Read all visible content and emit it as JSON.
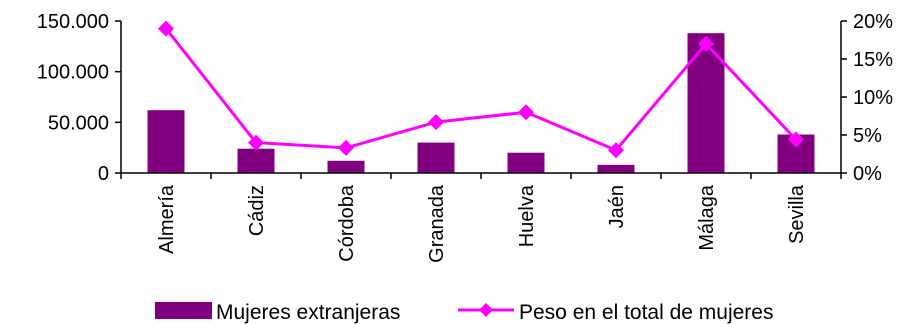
{
  "chart_data": {
    "type": "bar",
    "categories": [
      "Almería",
      "Cádiz",
      "Córdoba",
      "Granada",
      "Huelva",
      "Jaén",
      "Málaga",
      "Sevilla"
    ],
    "series": [
      {
        "name": "Mujeres extranjeras",
        "type": "bar",
        "axis": "left",
        "color": "#800080",
        "values": [
          62000,
          24000,
          12000,
          30000,
          20000,
          8000,
          138000,
          38000
        ]
      },
      {
        "name": "Peso en el total de mujeres",
        "type": "line",
        "axis": "right",
        "color": "#ff00ff",
        "marker": "diamond",
        "values": [
          0.19,
          0.04,
          0.033,
          0.067,
          0.08,
          0.03,
          0.17,
          0.044
        ]
      }
    ],
    "y_left": {
      "ylim": [
        0,
        150000
      ],
      "ticks": [
        0,
        50000,
        100000,
        150000
      ],
      "tick_labels": [
        "0",
        "50.000",
        "100.000",
        "150.000"
      ]
    },
    "y_right": {
      "ylim": [
        0,
        0.2
      ],
      "ticks": [
        0,
        0.05,
        0.1,
        0.15,
        0.2
      ],
      "tick_labels": [
        "0%",
        "5%",
        "10%",
        "15%",
        "20%"
      ]
    },
    "grid": false,
    "legend": "bottom"
  }
}
